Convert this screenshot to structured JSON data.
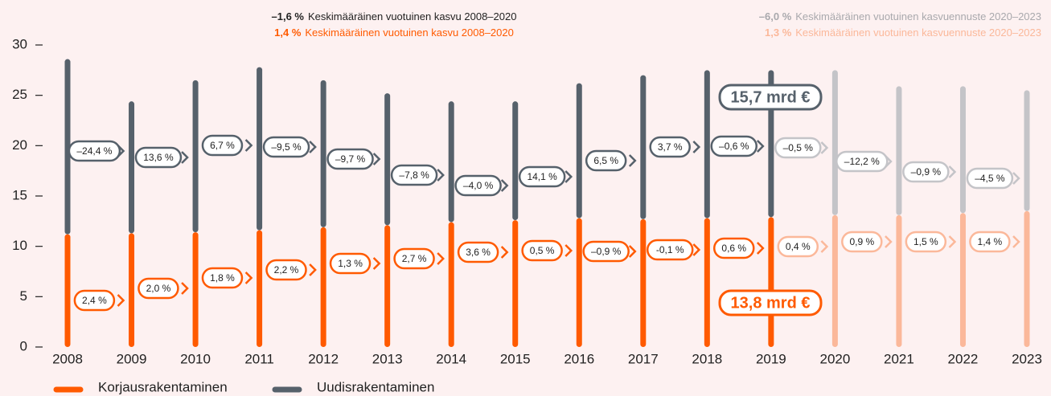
{
  "chart_data": {
    "type": "bar",
    "stacked": true,
    "header_left": [
      {
        "bold": "–1,6 %",
        "text": "Keskimääräinen vuotuinen kasvu 2008–2020",
        "color": "#222222"
      },
      {
        "bold": "1,4 %",
        "text": "Keskimääräinen vuotuinen kasvu 2008–2020",
        "color": "#ff5a00"
      }
    ],
    "header_right": [
      {
        "bold": "–6,0 %",
        "text": "Keskimääräinen vuotuinen kasvuennuste 2020–2023",
        "color": "#a9a9ad"
      },
      {
        "bold": "1,3 %",
        "text": "Keskimääräinen vuotuinen kasvuennuste 2020–2023",
        "color": "#fbb89a"
      }
    ],
    "categories": [
      "2008",
      "2009",
      "2010",
      "2011",
      "2012",
      "2013",
      "2014",
      "2015",
      "2016",
      "2017",
      "2018",
      "2019",
      "2020",
      "2021",
      "2022",
      "2023"
    ],
    "series": [
      {
        "name": "Korjausrakentaminen",
        "color": "#ff5a00",
        "colors": [
          "#ff5a00",
          "#ff5a00",
          "#ff5a00",
          "#ff5a00",
          "#ff5a00",
          "#ff5a00",
          "#ff5a00",
          "#ff5a00",
          "#ff5a00",
          "#ff5a00",
          "#ff5a00",
          "#ff5a00",
          "#fbb89a",
          "#fbb89a",
          "#fbb89a",
          "#fbb89a"
        ],
        "values": [
          11.2,
          11.3,
          11.4,
          11.6,
          11.9,
          12.1,
          12.4,
          12.6,
          12.8,
          12.7,
          12.8,
          12.9,
          13.1,
          13.1,
          13.3,
          13.5
        ],
        "growth_labels": [
          "2,4 %",
          "2,0 %",
          "1,8 %",
          "2,2 %",
          "1,3 %",
          "2,7 %",
          "3,6 %",
          "0,5 %",
          "–0,9 %",
          "-0,1 %",
          "0,6 %",
          "0,4 %",
          "0,9 %",
          "1,5 %",
          "1,4 %"
        ]
      },
      {
        "name": "Uudisrakentaminen",
        "color": "#56616b",
        "colors": [
          "#56616b",
          "#56616b",
          "#56616b",
          "#56616b",
          "#56616b",
          "#56616b",
          "#56616b",
          "#56616b",
          "#56616b",
          "#56616b",
          "#56616b",
          "#56616b",
          "#c4c4c8",
          "#c4c4c8",
          "#c4c4c8",
          "#c4c4c8"
        ],
        "values": [
          17.4,
          13.1,
          15.1,
          16.2,
          14.6,
          13.1,
          12.0,
          11.8,
          13.4,
          14.3,
          14.7,
          14.6,
          14.4,
          12.8,
          12.6,
          12.0
        ],
        "growth_labels": [
          "–24,4 %",
          "13,6 %",
          "6,7 %",
          "–9,5 %",
          "–9,7 %",
          "–7,8 %",
          "–4,0 %",
          "14,1 %",
          "6,5 %",
          "3,7 %",
          "–0,6 %",
          "–0,5 %",
          "–12,2 %",
          "–0,9 %",
          "–4,5 %"
        ]
      }
    ],
    "annotations": [
      {
        "text": "15,7 mrd €",
        "color": "#56616b"
      },
      {
        "text": "13,8 mrd €",
        "color": "#ff5a00"
      }
    ],
    "ylim": [
      0,
      30
    ],
    "yticks": [
      0,
      5,
      10,
      15,
      20,
      25,
      30
    ]
  }
}
